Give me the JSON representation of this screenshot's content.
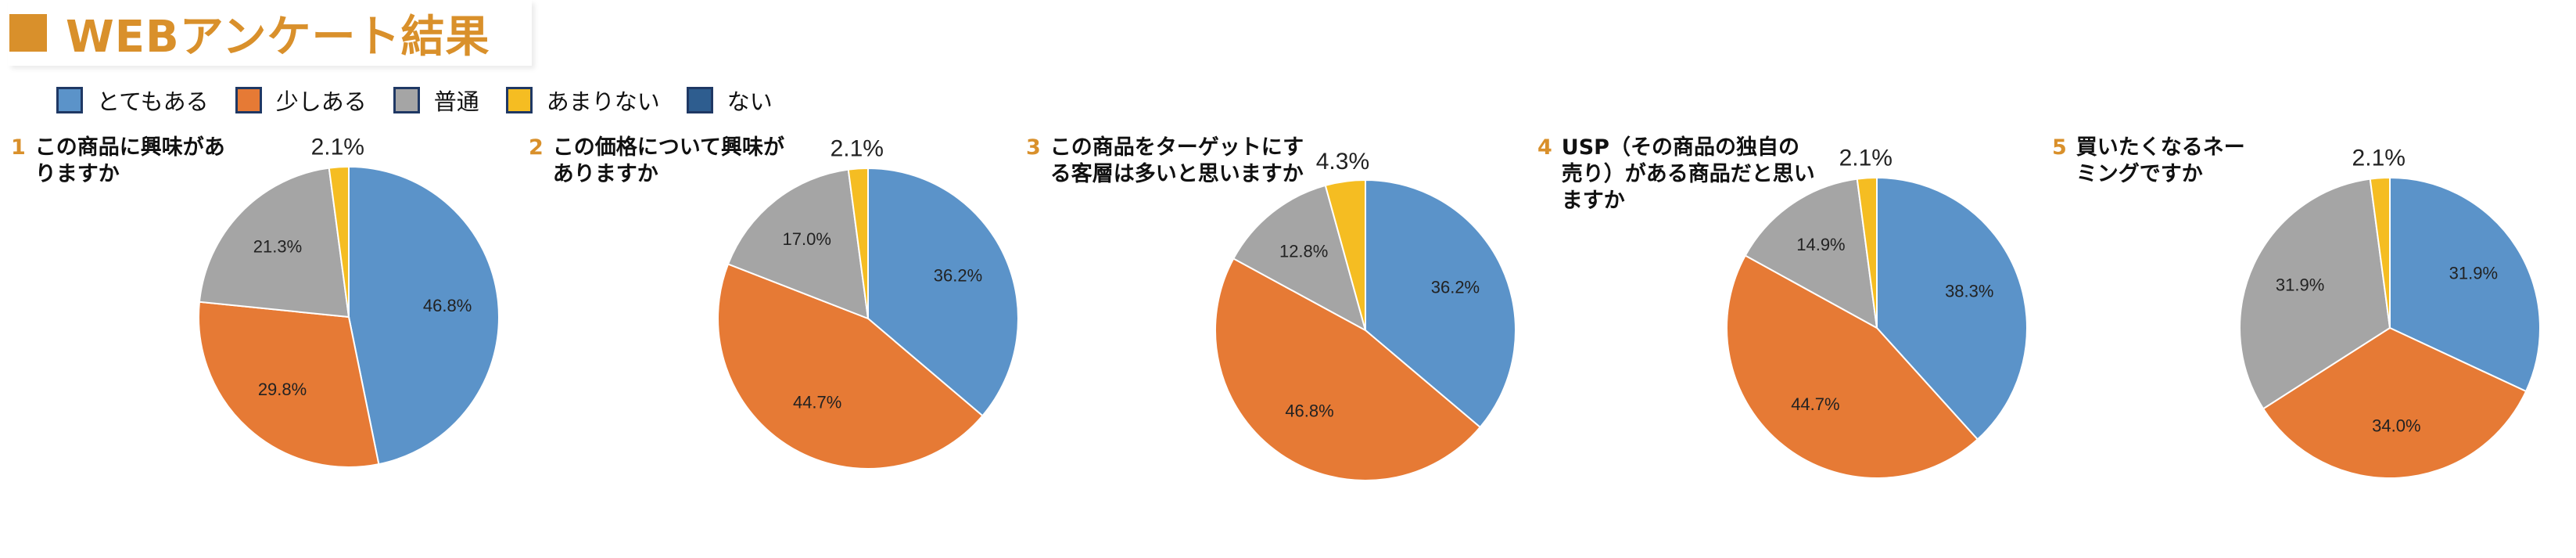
{
  "title": "WEBアンケート結果",
  "colors": {
    "accent": "#D9902B",
    "totemo": "#5B93C9",
    "sukoshi": "#E67A35",
    "futsuu": "#A5A5A5",
    "amari": "#F5BD22",
    "nai": "#2E5D8F",
    "edge": "#FFFFFF"
  },
  "legend": [
    {
      "label": "とてもある",
      "color": "#5B93C9"
    },
    {
      "label": "少しある",
      "color": "#E67A35"
    },
    {
      "label": "普通",
      "color": "#A5A5A5"
    },
    {
      "label": "あまりない",
      "color": "#F5BD22"
    },
    {
      "label": "ない",
      "color": "#2E5D8F"
    }
  ],
  "questions": [
    {
      "num": "1",
      "text": "この商品に興味がありますか"
    },
    {
      "num": "2",
      "text": "この価格について興味がありますか"
    },
    {
      "num": "3",
      "text": "この商品をターゲットにする客層は多いと思いますか"
    },
    {
      "num": "4",
      "text": "USP（その商品の独自の売り）がある商品だと思いますか"
    },
    {
      "num": "5",
      "text": "買いたくなるネーミングですか"
    }
  ],
  "chart_data": [
    {
      "type": "pie",
      "categories": [
        "とてもある",
        "少しある",
        "普通",
        "あまりない"
      ],
      "values": [
        46.8,
        29.8,
        21.3,
        2.1
      ],
      "labels": [
        "46.8%",
        "29.8%",
        "21.3%",
        "2.1%"
      ]
    },
    {
      "type": "pie",
      "categories": [
        "とてもある",
        "少しある",
        "普通",
        "あまりない"
      ],
      "values": [
        36.2,
        44.7,
        17.0,
        2.1
      ],
      "labels": [
        "36.2%",
        "44.7%",
        "17.0%",
        "2.1%"
      ]
    },
    {
      "type": "pie",
      "categories": [
        "とてもある",
        "少しある",
        "普通",
        "あまりない"
      ],
      "values": [
        36.2,
        46.8,
        12.8,
        4.3
      ],
      "labels": [
        "36.2%",
        "46.8%",
        "12.8%",
        "4.3%"
      ]
    },
    {
      "type": "pie",
      "categories": [
        "とてもある",
        "少しある",
        "普通",
        "あまりない"
      ],
      "values": [
        38.3,
        44.7,
        14.9,
        2.1
      ],
      "labels": [
        "38.3%",
        "44.7%",
        "14.9%",
        "2.1%"
      ]
    },
    {
      "type": "pie",
      "categories": [
        "とてもある",
        "少しある",
        "普通",
        "あまりない"
      ],
      "values": [
        31.9,
        34.0,
        31.9,
        2.1
      ],
      "labels": [
        "31.9%",
        "34.0%",
        "31.9%",
        "2.1%"
      ]
    }
  ]
}
